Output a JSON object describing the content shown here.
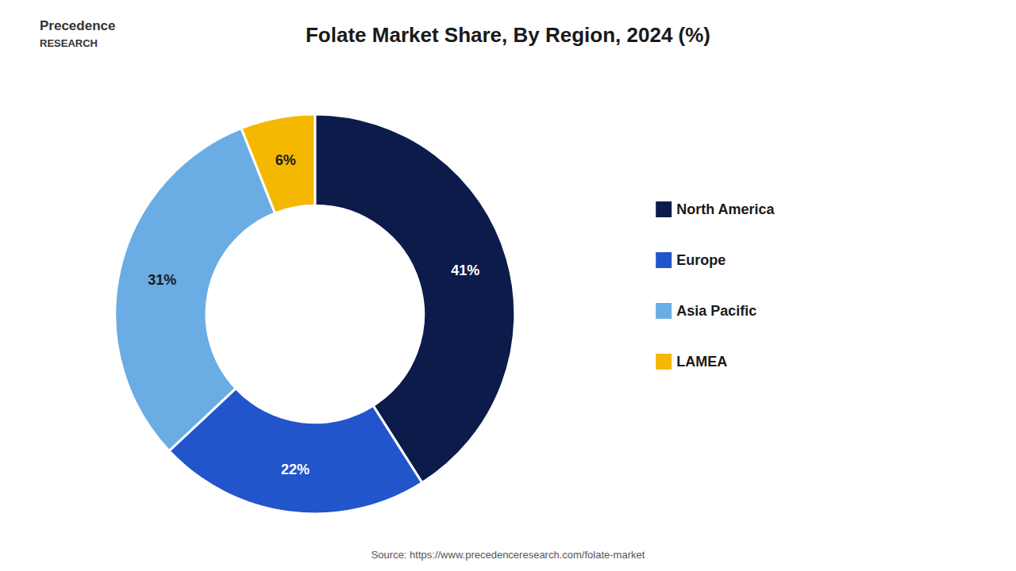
{
  "chart_data": {
    "type": "donut",
    "title": "Folate Market Share, By Region, 2024 (%)",
    "categories": [
      "North America",
      "Europe",
      "Asia Pacific",
      "LAMEA"
    ],
    "values": [
      41,
      22,
      31,
      6
    ],
    "value_labels": [
      "41%",
      "22%",
      "31%",
      "6%"
    ],
    "colors": [
      "#0d1b4b",
      "#2255cc",
      "#6aade4",
      "#f5b800"
    ],
    "data_labels": true,
    "legend": "right",
    "annotations": [
      "Precedence",
      "RESEARCH",
      "Source: https://www.precedenceresearch.com/folate-market"
    ]
  }
}
